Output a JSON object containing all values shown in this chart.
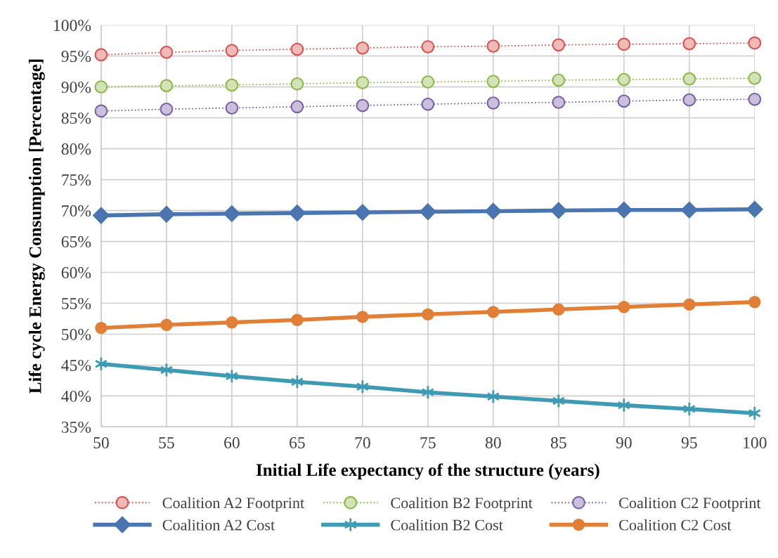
{
  "chart_data": {
    "type": "line",
    "xlabel": "Initial Life expectancy of the structure (years)",
    "ylabel": "Life cycle Energy Consumption [Percentage]",
    "x": [
      50,
      55,
      60,
      65,
      70,
      75,
      80,
      85,
      90,
      95,
      100
    ],
    "xlim": [
      50,
      100
    ],
    "xticks": [
      50,
      55,
      60,
      65,
      70,
      75,
      80,
      85,
      90,
      95,
      100
    ],
    "ylim": [
      35,
      100
    ],
    "yticks": [
      {
        "value": 35,
        "label": "35%"
      },
      {
        "value": 40,
        "label": "40%"
      },
      {
        "value": 45,
        "label": "45%"
      },
      {
        "value": 50,
        "label": "50%"
      },
      {
        "value": 55,
        "label": "55%"
      },
      {
        "value": 60,
        "label": "60%"
      },
      {
        "value": 65,
        "label": "65%"
      },
      {
        "value": 70,
        "label": "70%"
      },
      {
        "value": 75,
        "label": "75%"
      },
      {
        "value": 80,
        "label": "80%"
      },
      {
        "value": 85,
        "label": "85%"
      },
      {
        "value": 90,
        "label": "90%"
      },
      {
        "value": 95,
        "label": "95%"
      },
      {
        "value": 100,
        "label": "100%"
      }
    ],
    "grid": true,
    "legend": "bottom",
    "series": [
      {
        "name": "Coalition A2 Footprint",
        "color": "#d9534f",
        "marker": "circle",
        "line_style": "dotted",
        "values": [
          95.2,
          95.6,
          95.9,
          96.1,
          96.3,
          96.5,
          96.6,
          96.8,
          96.9,
          97.0,
          97.1
        ]
      },
      {
        "name": "Coalition B2 Footprint",
        "color": "#8fb84a",
        "marker": "circle",
        "line_style": "dotted",
        "values": [
          90.0,
          90.2,
          90.3,
          90.5,
          90.7,
          90.8,
          90.9,
          91.1,
          91.2,
          91.3,
          91.4
        ]
      },
      {
        "name": "Coalition C2 Footprint",
        "color": "#7b62a8",
        "marker": "circle",
        "line_style": "dotted",
        "values": [
          86.1,
          86.4,
          86.6,
          86.8,
          87.0,
          87.2,
          87.4,
          87.5,
          87.7,
          87.9,
          88.0
        ]
      },
      {
        "name": "Coalition A2 Cost",
        "color": "#4a75b0",
        "marker": "diamond",
        "line_style": "solid",
        "values": [
          69.2,
          69.4,
          69.5,
          69.6,
          69.7,
          69.8,
          69.9,
          70.0,
          70.1,
          70.1,
          70.2
        ]
      },
      {
        "name": "Coalition B2 Cost",
        "color": "#3f9ab4",
        "marker": "cross",
        "line_style": "solid",
        "values": [
          45.2,
          44.2,
          43.2,
          42.3,
          41.5,
          40.6,
          39.9,
          39.2,
          38.5,
          37.9,
          37.2
        ]
      },
      {
        "name": "Coalition C2 Cost",
        "color": "#e07f35",
        "marker": "circle",
        "line_style": "solid",
        "values": [
          51.0,
          51.5,
          51.9,
          52.3,
          52.8,
          53.2,
          53.6,
          54.0,
          54.4,
          54.8,
          55.2
        ]
      }
    ]
  }
}
